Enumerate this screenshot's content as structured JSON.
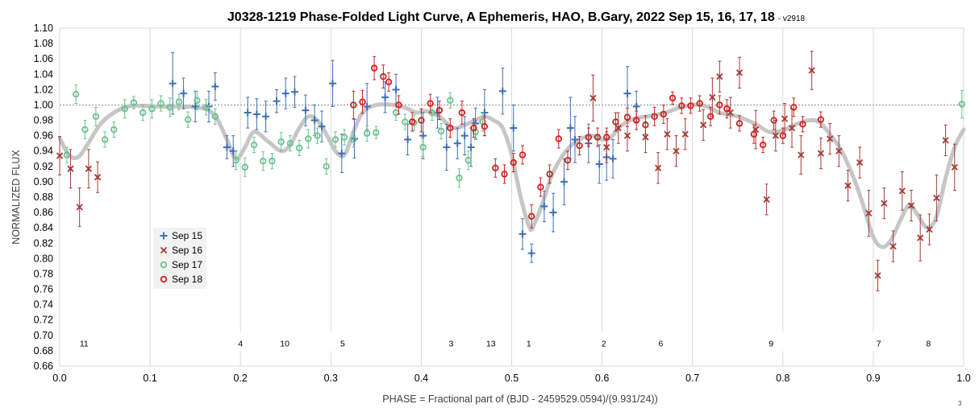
{
  "chart_data": {
    "type": "scatter",
    "title": "J0328-1219 Phase-Folded Light Curve, A Ephemeris, HAO, B.Gary, 2022 Sep 15, 16, 17, 18",
    "version": "- v2918",
    "xlabel": "PHASE = Fractional part of (BJD - 2459529.0594)/(9.931/24))",
    "ylabel": "NORMALIZED FLUX",
    "xlim": [
      0.0,
      1.0
    ],
    "ylim": [
      0.66,
      1.1
    ],
    "x_ticks": [
      "0.0",
      "0.1",
      "0.2",
      "0.3",
      "0.4",
      "0.5",
      "0.6",
      "0.7",
      "0.8",
      "0.9",
      "1.0"
    ],
    "y_ticks": [
      "0.66",
      "0.68",
      "0.70",
      "0.72",
      "0.74",
      "0.76",
      "0.78",
      "0.80",
      "0.82",
      "0.84",
      "0.86",
      "0.88",
      "0.90",
      "0.92",
      "0.94",
      "0.96",
      "0.98",
      "1.00",
      "1.02",
      "1.04",
      "1.06",
      "1.08",
      "1.10"
    ],
    "grid": "vertical",
    "reference_line": 1.0,
    "legend_placement": "lower-left",
    "series": [
      {
        "name": "Sep 15",
        "marker": "plus",
        "color": "#3d6fb5",
        "points": [
          [
            0.125,
            1.028,
            0.04
          ],
          [
            0.137,
            1.015,
            0.02
          ],
          [
            0.15,
            0.998,
            0.02
          ],
          [
            0.165,
            0.998,
            0.02
          ],
          [
            0.172,
            1.024,
            0.018
          ],
          [
            0.185,
            0.945,
            0.015
          ],
          [
            0.192,
            0.94,
            0.02
          ],
          [
            0.208,
            0.99,
            0.02
          ],
          [
            0.218,
            0.988,
            0.02
          ],
          [
            0.228,
            0.985,
            0.02
          ],
          [
            0.24,
            1.005,
            0.015
          ],
          [
            0.25,
            1.015,
            0.02
          ],
          [
            0.26,
            1.017,
            0.02
          ],
          [
            0.272,
            0.993,
            0.02
          ],
          [
            0.282,
            0.98,
            0.02
          ],
          [
            0.29,
            0.972,
            0.02
          ],
          [
            0.302,
            1.028,
            0.03
          ],
          [
            0.312,
            0.937,
            0.025
          ],
          [
            0.326,
            0.956,
            0.025
          ],
          [
            0.34,
            0.998,
            0.03
          ],
          [
            0.36,
            1.01,
            0.02
          ],
          [
            0.372,
            1.02,
            0.02
          ],
          [
            0.385,
            0.955,
            0.02
          ],
          [
            0.402,
            0.96,
            0.03
          ],
          [
            0.418,
            0.99,
            0.02
          ],
          [
            0.428,
            0.945,
            0.03
          ],
          [
            0.44,
            0.95,
            0.02
          ],
          [
            0.448,
            0.96,
            0.025
          ],
          [
            0.455,
            0.945,
            0.025
          ],
          [
            0.46,
            0.976,
            0.02
          ],
          [
            0.47,
            0.99,
            0.03
          ],
          [
            0.49,
            1.018,
            0.03
          ],
          [
            0.502,
            0.97,
            0.03
          ],
          [
            0.512,
            0.832,
            0.02
          ],
          [
            0.522,
            0.807,
            0.012
          ],
          [
            0.536,
            0.868,
            0.02
          ],
          [
            0.546,
            0.86,
            0.025
          ],
          [
            0.558,
            0.9,
            0.03
          ],
          [
            0.565,
            0.97,
            0.04
          ],
          [
            0.57,
            0.955,
            0.03
          ],
          [
            0.585,
            0.95,
            0.025
          ],
          [
            0.597,
            0.923,
            0.025
          ],
          [
            0.605,
            0.932,
            0.03
          ],
          [
            0.612,
            0.93,
            0.025
          ],
          [
            0.628,
            1.015,
            0.035
          ],
          [
            0.638,
            0.998,
            0.02
          ]
        ]
      },
      {
        "name": "Sep 16",
        "marker": "cross",
        "color": "#a33b36",
        "points": [
          [
            0.0,
            0.934,
            0.025
          ],
          [
            0.012,
            0.917,
            0.025
          ],
          [
            0.022,
            0.867,
            0.025
          ],
          [
            0.032,
            0.917,
            0.025
          ],
          [
            0.042,
            0.906,
            0.02
          ],
          [
            0.59,
            1.009,
            0.03
          ],
          [
            0.605,
            0.945,
            0.02
          ],
          [
            0.618,
            0.97,
            0.02
          ],
          [
            0.628,
            0.96,
            0.02
          ],
          [
            0.648,
            0.958,
            0.02
          ],
          [
            0.662,
            0.918,
            0.02
          ],
          [
            0.672,
            0.962,
            0.02
          ],
          [
            0.682,
            0.94,
            0.02
          ],
          [
            0.692,
            0.962,
            0.02
          ],
          [
            0.712,
            0.974,
            0.02
          ],
          [
            0.722,
            1.01,
            0.025
          ],
          [
            0.73,
            1.037,
            0.02
          ],
          [
            0.742,
            0.99,
            0.02
          ],
          [
            0.752,
            1.042,
            0.02
          ],
          [
            0.77,
            0.968,
            0.025
          ],
          [
            0.782,
            0.877,
            0.02
          ],
          [
            0.792,
            0.96,
            0.02
          ],
          [
            0.802,
            0.982,
            0.02
          ],
          [
            0.81,
            0.97,
            0.025
          ],
          [
            0.82,
            0.935,
            0.025
          ],
          [
            0.832,
            1.045,
            0.025
          ],
          [
            0.842,
            0.937,
            0.02
          ],
          [
            0.852,
            0.956,
            0.02
          ],
          [
            0.862,
            0.94,
            0.02
          ],
          [
            0.872,
            0.895,
            0.02
          ],
          [
            0.885,
            0.925,
            0.02
          ],
          [
            0.895,
            0.859,
            0.03
          ],
          [
            0.905,
            0.778,
            0.02
          ],
          [
            0.912,
            0.872,
            0.02
          ],
          [
            0.922,
            0.816,
            0.02
          ],
          [
            0.932,
            0.888,
            0.025
          ],
          [
            0.942,
            0.869,
            0.02
          ],
          [
            0.952,
            0.827,
            0.03
          ],
          [
            0.962,
            0.838,
            0.02
          ],
          [
            0.97,
            0.879,
            0.03
          ],
          [
            0.98,
            0.954,
            0.02
          ],
          [
            0.99,
            0.919,
            0.03
          ]
        ]
      },
      {
        "name": "Sep 17",
        "marker": "circle",
        "color": "#6dc28e",
        "points": [
          [
            0.008,
            0.935,
            0.01
          ],
          [
            0.018,
            1.014,
            0.012
          ],
          [
            0.028,
            0.968,
            0.012
          ],
          [
            0.04,
            0.985,
            0.012
          ],
          [
            0.05,
            0.955,
            0.01
          ],
          [
            0.06,
            0.968,
            0.01
          ],
          [
            0.072,
            0.995,
            0.012
          ],
          [
            0.082,
            1.003,
            0.008
          ],
          [
            0.092,
            0.99,
            0.01
          ],
          [
            0.102,
            0.995,
            0.012
          ],
          [
            0.112,
            1.002,
            0.01
          ],
          [
            0.122,
            0.997,
            0.012
          ],
          [
            0.132,
            1.004,
            0.01
          ],
          [
            0.142,
            0.981,
            0.01
          ],
          [
            0.152,
            1.006,
            0.012
          ],
          [
            0.162,
            0.997,
            0.01
          ],
          [
            0.172,
            0.985,
            0.01
          ],
          [
            0.195,
            0.928,
            0.012
          ],
          [
            0.205,
            0.919,
            0.012
          ],
          [
            0.215,
            0.948,
            0.01
          ],
          [
            0.225,
            0.927,
            0.012
          ],
          [
            0.235,
            0.927,
            0.01
          ],
          [
            0.245,
            0.952,
            0.012
          ],
          [
            0.255,
            0.95,
            0.01
          ],
          [
            0.265,
            0.944,
            0.01
          ],
          [
            0.275,
            0.956,
            0.012
          ],
          [
            0.285,
            0.96,
            0.01
          ],
          [
            0.295,
            0.92,
            0.01
          ],
          [
            0.305,
            0.955,
            0.01
          ],
          [
            0.315,
            0.958,
            0.01
          ],
          [
            0.325,
            0.955,
            0.01
          ],
          [
            0.34,
            0.963,
            0.01
          ],
          [
            0.35,
            0.964,
            0.008
          ],
          [
            0.372,
            0.99,
            0.01
          ],
          [
            0.382,
            0.978,
            0.01
          ],
          [
            0.392,
            0.977,
            0.01
          ],
          [
            0.402,
            0.945,
            0.012
          ],
          [
            0.412,
            0.99,
            0.01
          ],
          [
            0.422,
            0.966,
            0.01
          ],
          [
            0.432,
            1.006,
            0.01
          ],
          [
            0.442,
            0.905,
            0.012
          ],
          [
            0.452,
            0.928,
            0.012
          ],
          [
            0.46,
            0.965,
            0.01
          ],
          [
            0.468,
            0.978,
            0.012
          ],
          [
            0.998,
            1.001,
            0.018
          ]
        ]
      },
      {
        "name": "Sep 18",
        "marker": "circle",
        "color": "#cc2222",
        "points": [
          [
            0.325,
            1.0,
            0.018
          ],
          [
            0.335,
            1.004,
            0.015
          ],
          [
            0.348,
            1.048,
            0.015
          ],
          [
            0.358,
            1.037,
            0.015
          ],
          [
            0.364,
            1.03,
            0.012
          ],
          [
            0.375,
            1.0,
            0.012
          ],
          [
            0.39,
            0.978,
            0.012
          ],
          [
            0.4,
            0.98,
            0.015
          ],
          [
            0.41,
            1.002,
            0.012
          ],
          [
            0.42,
            0.993,
            0.012
          ],
          [
            0.432,
            0.97,
            0.012
          ],
          [
            0.445,
            0.99,
            0.015
          ],
          [
            0.458,
            0.97,
            0.012
          ],
          [
            0.47,
            0.972,
            0.012
          ],
          [
            0.482,
            0.918,
            0.012
          ],
          [
            0.492,
            0.91,
            0.012
          ],
          [
            0.502,
            0.925,
            0.012
          ],
          [
            0.512,
            0.935,
            0.012
          ],
          [
            0.522,
            0.855,
            0.015
          ],
          [
            0.532,
            0.893,
            0.012
          ],
          [
            0.542,
            0.91,
            0.012
          ],
          [
            0.552,
            0.956,
            0.012
          ],
          [
            0.562,
            0.928,
            0.012
          ],
          [
            0.575,
            0.947,
            0.012
          ],
          [
            0.585,
            0.958,
            0.012
          ],
          [
            0.595,
            0.958,
            0.012
          ],
          [
            0.605,
            0.958,
            0.012
          ],
          [
            0.615,
            0.978,
            0.012
          ],
          [
            0.628,
            0.984,
            0.012
          ],
          [
            0.638,
            0.98,
            0.012
          ],
          [
            0.648,
            0.974,
            0.012
          ],
          [
            0.658,
            0.985,
            0.012
          ],
          [
            0.668,
            0.988,
            0.012
          ],
          [
            0.678,
            1.009,
            0.008
          ],
          [
            0.688,
            0.999,
            0.01
          ],
          [
            0.698,
            0.999,
            0.01
          ],
          [
            0.708,
            1.002,
            0.01
          ],
          [
            0.72,
            0.985,
            0.012
          ],
          [
            0.73,
            1.0,
            0.012
          ],
          [
            0.738,
            0.995,
            0.012
          ],
          [
            0.752,
            0.976,
            0.01
          ],
          [
            0.768,
            0.962,
            0.012
          ],
          [
            0.778,
            0.948,
            0.01
          ],
          [
            0.79,
            0.98,
            0.012
          ],
          [
            0.8,
            0.96,
            0.01
          ],
          [
            0.812,
            0.997,
            0.012
          ],
          [
            0.822,
            0.975,
            0.01
          ],
          [
            0.842,
            0.981,
            0.01
          ]
        ]
      }
    ],
    "model_curve": {
      "color": "#c0c0c0",
      "x": [
        0.0,
        0.01,
        0.02,
        0.03,
        0.045,
        0.06,
        0.075,
        0.09,
        0.11,
        0.13,
        0.15,
        0.165,
        0.175,
        0.185,
        0.195,
        0.205,
        0.215,
        0.23,
        0.245,
        0.255,
        0.265,
        0.275,
        0.285,
        0.295,
        0.305,
        0.315,
        0.325,
        0.335,
        0.35,
        0.37,
        0.385,
        0.395,
        0.405,
        0.42,
        0.435,
        0.45,
        0.46,
        0.47,
        0.48,
        0.49,
        0.5,
        0.51,
        0.52,
        0.525,
        0.535,
        0.545,
        0.56,
        0.575,
        0.59,
        0.6,
        0.61,
        0.62,
        0.635,
        0.65,
        0.67,
        0.69,
        0.71,
        0.73,
        0.75,
        0.77,
        0.785,
        0.8,
        0.815,
        0.83,
        0.84,
        0.85,
        0.865,
        0.88,
        0.89,
        0.9,
        0.91,
        0.92,
        0.93,
        0.94,
        0.95,
        0.96,
        0.97,
        0.98,
        0.99,
        1.0
      ],
      "y": [
        0.957,
        0.935,
        0.932,
        0.947,
        0.975,
        0.99,
        0.998,
        0.999,
        0.998,
        0.998,
        0.997,
        0.993,
        0.98,
        0.955,
        0.93,
        0.945,
        0.965,
        0.953,
        0.94,
        0.948,
        0.97,
        0.985,
        0.98,
        0.962,
        0.94,
        0.935,
        0.965,
        0.99,
        1.0,
        1.0,
        0.995,
        0.99,
        0.992,
        0.985,
        0.97,
        0.975,
        0.98,
        0.985,
        0.98,
        0.97,
        0.935,
        0.88,
        0.84,
        0.845,
        0.875,
        0.91,
        0.94,
        0.955,
        0.96,
        0.955,
        0.958,
        0.972,
        0.982,
        0.985,
        0.99,
        0.998,
        1.0,
        0.99,
        0.985,
        0.975,
        0.965,
        0.967,
        0.975,
        0.98,
        0.978,
        0.965,
        0.94,
        0.9,
        0.865,
        0.828,
        0.815,
        0.825,
        0.85,
        0.87,
        0.855,
        0.84,
        0.855,
        0.905,
        0.945,
        0.968
      ]
    },
    "annotations": [
      {
        "text": "11",
        "x": 0.027
      },
      {
        "text": "4",
        "x": 0.2
      },
      {
        "text": "10",
        "x": 0.249
      },
      {
        "text": "5",
        "x": 0.313
      },
      {
        "text": "3",
        "x": 0.433
      },
      {
        "text": "13",
        "x": 0.477
      },
      {
        "text": "1",
        "x": 0.519
      },
      {
        "text": "2",
        "x": 0.602
      },
      {
        "text": "6",
        "x": 0.665
      },
      {
        "text": "9",
        "x": 0.787
      },
      {
        "text": "7",
        "x": 0.906
      },
      {
        "text": "8",
        "x": 0.961
      }
    ],
    "annotation_y": 0.69,
    "footnote": "3"
  }
}
